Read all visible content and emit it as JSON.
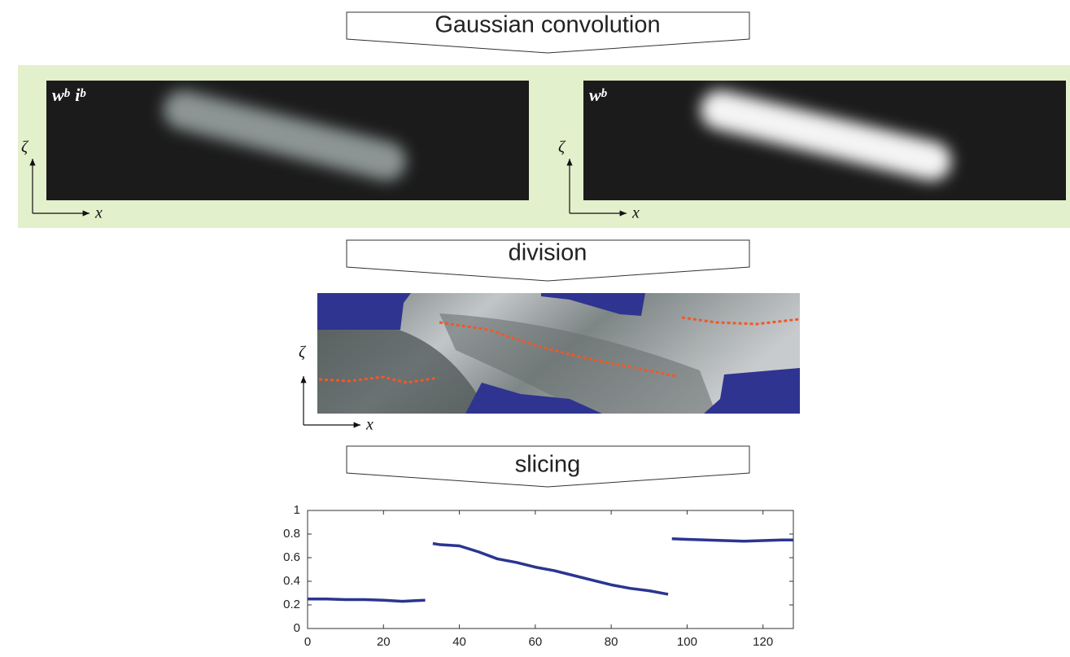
{
  "steps": [
    "Gaussian convolution",
    "division",
    "slicing"
  ],
  "panels": [
    {
      "label": [
        {
          "base": "w",
          "sup": "b"
        },
        {
          "base": "i",
          "sup": "b"
        }
      ]
    },
    {
      "label": [
        {
          "base": "w",
          "sup": "b"
        }
      ]
    }
  ],
  "axes": {
    "y": "ζ",
    "x": "x"
  },
  "chart_data": {
    "type": "line",
    "x": [
      0,
      5,
      10,
      15,
      20,
      25,
      28,
      31,
      32,
      33,
      35,
      40,
      45,
      50,
      55,
      60,
      65,
      70,
      75,
      80,
      85,
      90,
      95,
      95.5,
      96,
      100,
      105,
      110,
      115,
      120,
      125,
      128
    ],
    "series": [
      {
        "color": "#2b3590",
        "values": [
          0.25,
          0.25,
          0.245,
          0.245,
          0.24,
          0.23,
          0.235,
          0.24,
          null,
          0.72,
          0.71,
          0.7,
          0.65,
          0.59,
          0.56,
          0.52,
          0.49,
          0.45,
          0.41,
          0.37,
          0.34,
          0.32,
          0.29,
          null,
          0.76,
          0.755,
          0.75,
          0.745,
          0.74,
          0.745,
          0.75,
          0.75
        ]
      }
    ],
    "xlim": [
      0,
      128
    ],
    "xticks": [
      0,
      20,
      40,
      60,
      80,
      100,
      120
    ],
    "ylim": [
      0,
      1
    ],
    "yticks": [
      0,
      0.2,
      0.4,
      0.6,
      0.8,
      1
    ]
  }
}
